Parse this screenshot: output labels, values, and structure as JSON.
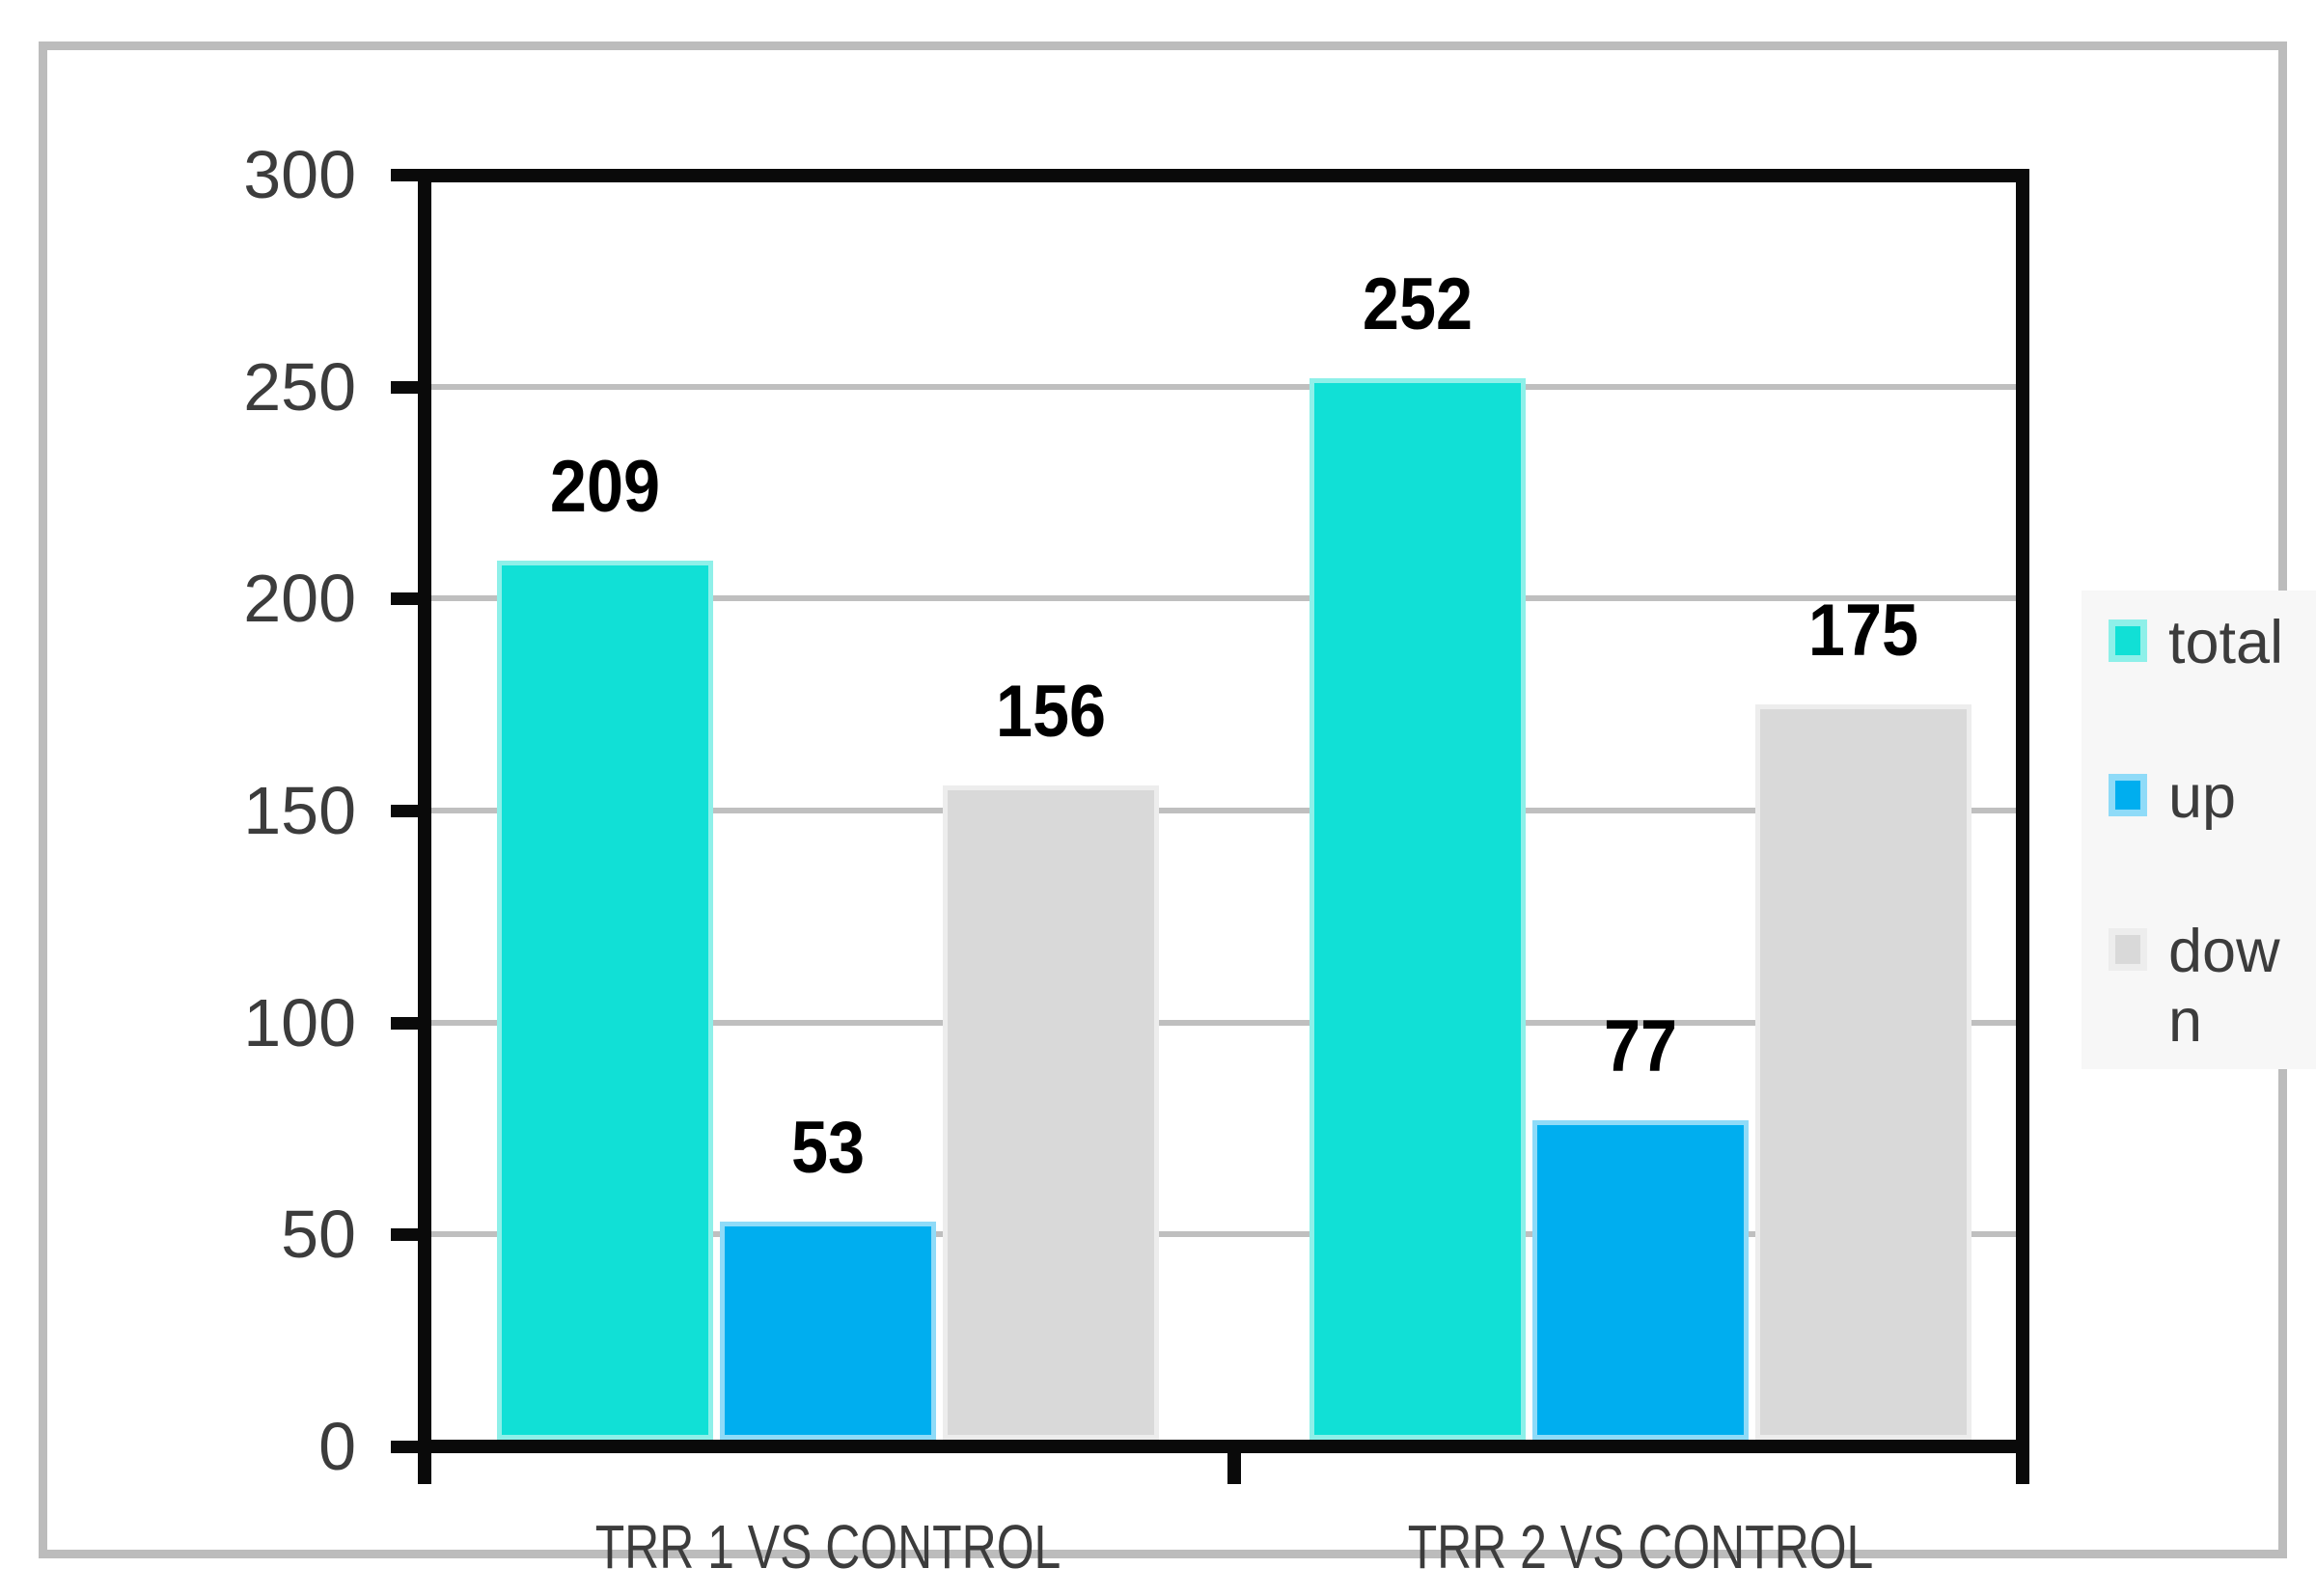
{
  "chart_data": {
    "type": "bar",
    "categories": [
      "TRR 1 VS CONTROL",
      "TRR 2 VS CONTROL"
    ],
    "series": [
      {
        "name": "total",
        "color": "#11E0D6",
        "border_color": "#8EF0E9",
        "values": [
          209,
          252
        ]
      },
      {
        "name": "up",
        "color": "#00AEEF",
        "border_color": "#8FDBF8",
        "values": [
          53,
          77
        ]
      },
      {
        "name": "down",
        "color": "#D9D9D9",
        "border_color": "#EDEDED",
        "values": [
          156,
          175
        ]
      }
    ],
    "title": "",
    "xlabel": "",
    "ylabel": "",
    "ylim": [
      0,
      300
    ],
    "yticks": [
      0,
      50,
      100,
      150,
      200,
      250,
      300
    ],
    "grid": true,
    "legend_position": "right",
    "data_labels_shown": true
  },
  "colors": {
    "gridline": "#BFBFBF",
    "axis": "#0a0a0a",
    "tick_label": "#3C3C3C",
    "data_label": "#000000",
    "frame_border": "#BCBCBC",
    "legend_background": "#F7F7F7",
    "plot_background": "#ffffff"
  }
}
